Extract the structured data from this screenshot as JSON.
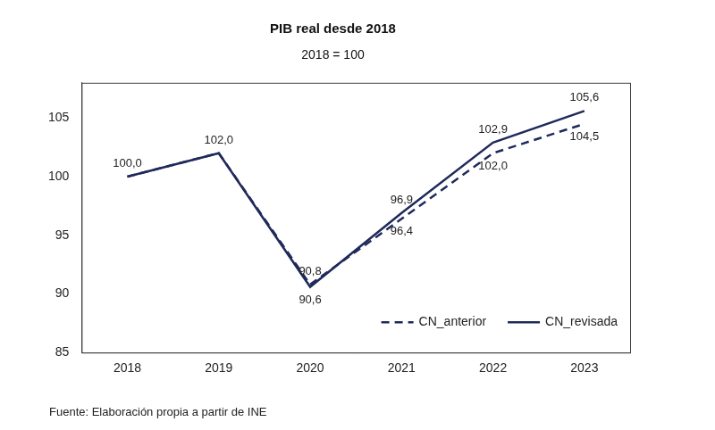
{
  "chart_data": {
    "type": "line",
    "title": "PIB real desde 2018",
    "subtitle": "2018 = 100",
    "source": "Fuente: Elaboración propia a partir de INE",
    "categories": [
      "2018",
      "2019",
      "2020",
      "2021",
      "2022",
      "2023"
    ],
    "series": [
      {
        "name": "CN_anterior",
        "color": "#1f2a5a",
        "line_style": "dashed",
        "values": [
          100.0,
          102.0,
          90.8,
          96.4,
          102.0,
          104.5
        ],
        "value_labels": [
          null,
          null,
          "90,8",
          "96,4",
          "102,0",
          "104,5"
        ]
      },
      {
        "name": "CN_revisada",
        "color": "#1f2a5a",
        "line_style": "solid",
        "values": [
          100.0,
          102.0,
          90.6,
          96.9,
          102.9,
          105.6
        ],
        "value_labels": [
          "100,0",
          "102,0",
          "90,6",
          "96,9",
          "102,9",
          "105,6"
        ]
      }
    ],
    "ylim": [
      85,
      108
    ],
    "yticks": [
      85,
      90,
      95,
      100,
      105
    ],
    "grid": false,
    "legend": "lower right",
    "data_labels": true
  }
}
